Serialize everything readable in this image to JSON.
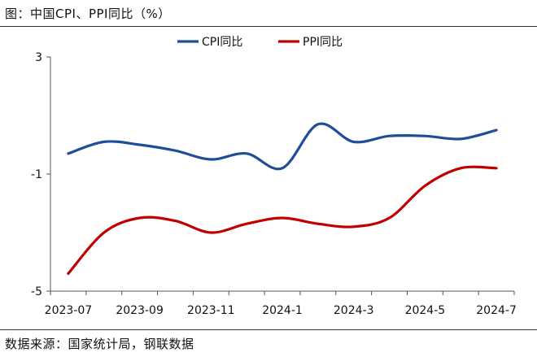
{
  "title": "图：中国CPI、PPI同比（%）",
  "source": "数据来源：国家统计局，钢联数据",
  "chart_data": {
    "type": "line",
    "x": [
      "2023-07",
      "2023-08",
      "2023-09",
      "2023-10",
      "2023-11",
      "2023-12",
      "2024-1",
      "2024-2",
      "2024-3",
      "2024-4",
      "2024-5",
      "2024-6",
      "2024-7"
    ],
    "x_tick_labels": [
      "2023-07",
      "2023-09",
      "2023-11",
      "2024-1",
      "2024-3",
      "2024-5",
      "2024-7"
    ],
    "y_tick_labels": [
      "3",
      "-1",
      "-5"
    ],
    "ylim": [
      -5,
      3
    ],
    "series": [
      {
        "name": "CPI同比",
        "color": "#1f4e96",
        "values": [
          -0.3,
          0.1,
          0.0,
          -0.2,
          -0.5,
          -0.3,
          -0.8,
          0.7,
          0.1,
          0.3,
          0.3,
          0.2,
          0.5
        ]
      },
      {
        "name": "PPI同比",
        "color": "#c00000",
        "values": [
          -4.4,
          -3.0,
          -2.5,
          -2.6,
          -3.0,
          -2.7,
          -2.5,
          -2.7,
          -2.8,
          -2.5,
          -1.4,
          -0.8,
          -0.8
        ]
      }
    ],
    "legend_position": "top",
    "grid": false
  }
}
